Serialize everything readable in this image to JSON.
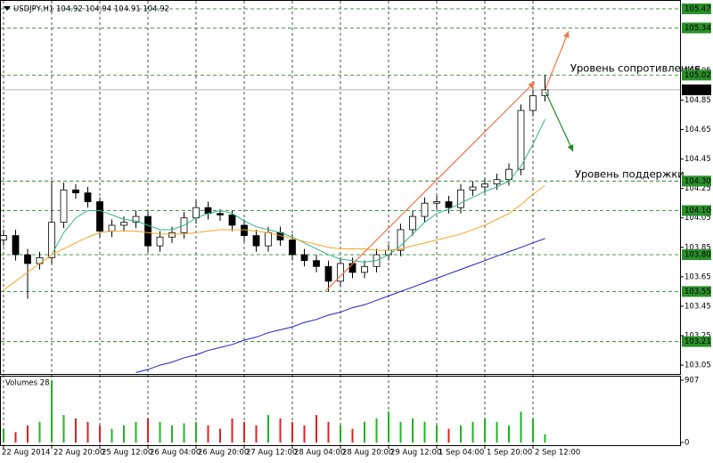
{
  "chart_data": {
    "type": "candlestick",
    "title": "USDJPY,H1  104.92 104.94 104.91 104.92",
    "categories": [
      "22 Aug 2014",
      null,
      null,
      null,
      "22 Aug 20:00",
      null,
      null,
      null,
      "25 Aug 12:00",
      null,
      null,
      null,
      "26 Aug 04:00",
      null,
      null,
      null,
      "26 Aug 20:00",
      null,
      null,
      null,
      "27 Aug 12:00",
      null,
      null,
      null,
      "28 Aug 04:00",
      null,
      null,
      null,
      "28 Aug 20:00",
      null,
      null,
      null,
      "29 Aug 12:00",
      null,
      null,
      null,
      "1 Sep 04:00",
      null,
      null,
      null,
      "1 Sep 20:00",
      null,
      null,
      null,
      "2 Sep 12:00",
      null
    ],
    "open": [
      103.9,
      103.93,
      103.8,
      103.74,
      103.78,
      104.02,
      104.24,
      104.22,
      104.16,
      103.96,
      104.0,
      104.02,
      104.06,
      103.86,
      103.92,
      103.95,
      104.05,
      104.12,
      104.08,
      104.07,
      104.0,
      103.93,
      103.86,
      103.95,
      103.9,
      103.8,
      103.76,
      103.72,
      103.62,
      103.74,
      103.68,
      103.72,
      103.8,
      103.83,
      103.97,
      104.06,
      104.15,
      104.16,
      104.12,
      104.24,
      104.26,
      104.28,
      104.31,
      104.38,
      104.78,
      104.88
    ],
    "high": [
      103.97,
      103.97,
      103.84,
      103.82,
      104.3,
      104.29,
      104.28,
      104.26,
      104.19,
      104.04,
      104.06,
      104.1,
      104.1,
      103.96,
      103.99,
      104.09,
      104.17,
      104.16,
      104.11,
      104.1,
      104.04,
      103.97,
      103.99,
      103.99,
      103.94,
      103.84,
      103.8,
      103.76,
      103.78,
      103.78,
      103.76,
      103.84,
      103.87,
      104.01,
      104.1,
      104.19,
      104.2,
      104.2,
      104.28,
      104.3,
      104.32,
      104.35,
      104.42,
      104.82,
      104.92,
      105.02
    ],
    "low": [
      103.86,
      103.76,
      103.5,
      103.7,
      103.74,
      103.98,
      104.18,
      104.12,
      103.92,
      103.92,
      103.96,
      103.98,
      103.82,
      103.82,
      103.88,
      103.91,
      104.01,
      104.04,
      104.03,
      103.96,
      103.89,
      103.82,
      103.82,
      103.86,
      103.76,
      103.72,
      103.68,
      103.55,
      103.58,
      103.64,
      103.64,
      103.68,
      103.76,
      103.79,
      103.93,
      104.02,
      104.11,
      104.08,
      104.08,
      104.2,
      104.22,
      104.24,
      104.27,
      104.34,
      104.74,
      104.84
    ],
    "close": [
      103.93,
      103.8,
      103.74,
      103.78,
      104.02,
      104.24,
      104.22,
      104.16,
      103.96,
      104.0,
      104.02,
      104.06,
      103.86,
      103.92,
      103.95,
      104.05,
      104.12,
      104.08,
      104.07,
      104.0,
      103.93,
      103.86,
      103.95,
      103.9,
      103.8,
      103.76,
      103.72,
      103.62,
      103.74,
      103.68,
      103.72,
      103.8,
      103.83,
      103.97,
      104.06,
      104.15,
      104.16,
      104.12,
      104.24,
      104.26,
      104.28,
      104.31,
      104.38,
      104.78,
      104.88,
      104.92
    ],
    "up_color": "#ffffff",
    "down_color": "#000000",
    "line_color": "#000000",
    "series": [
      {
        "color": "#2fb48a",
        "values": [
          null,
          null,
          null,
          null,
          103.8,
          103.95,
          104.05,
          104.1,
          104.1,
          104.07,
          104.04,
          104.03,
          104.0,
          103.97,
          103.97,
          104.0,
          104.05,
          104.08,
          104.1,
          104.08,
          104.03,
          103.99,
          103.97,
          103.95,
          103.92,
          103.88,
          103.84,
          103.8,
          103.77,
          103.76,
          103.75,
          103.76,
          103.8,
          103.86,
          103.94,
          104.02,
          104.08,
          104.11,
          104.15,
          104.19,
          104.23,
          104.26,
          104.3,
          104.4,
          104.55,
          104.72
        ]
      },
      {
        "color": "#f5a623",
        "values": [
          103.56,
          103.62,
          103.68,
          103.74,
          103.8,
          103.84,
          103.88,
          103.92,
          103.95,
          103.96,
          103.96,
          103.96,
          103.95,
          103.94,
          103.94,
          103.94,
          103.95,
          103.96,
          103.97,
          103.97,
          103.97,
          103.96,
          103.95,
          103.93,
          103.91,
          103.89,
          103.87,
          103.85,
          103.84,
          103.84,
          103.84,
          103.83,
          103.83,
          103.84,
          103.86,
          103.88,
          103.9,
          103.92,
          103.94,
          103.97,
          104.0,
          104.04,
          104.08,
          104.14,
          104.21,
          104.27
        ]
      },
      {
        "color": "#2020c0",
        "values": [
          null,
          null,
          null,
          null,
          null,
          null,
          null,
          null,
          null,
          null,
          null,
          103.0,
          103.02,
          103.05,
          103.07,
          103.1,
          103.12,
          103.15,
          103.17,
          103.19,
          103.22,
          103.24,
          103.27,
          103.29,
          103.31,
          103.34,
          103.36,
          103.39,
          103.41,
          103.44,
          103.46,
          103.49,
          103.52,
          103.55,
          103.58,
          103.61,
          103.64,
          103.67,
          103.7,
          103.73,
          103.76,
          103.79,
          103.82,
          103.85,
          103.88,
          103.91
        ]
      }
    ],
    "ylim": [
      102.99,
      105.53
    ],
    "yticks": [
      105.05,
      104.85,
      104.65,
      104.45,
      104.25,
      104.05,
      103.85,
      103.65,
      103.45,
      103.25,
      103.05
    ],
    "levels": [
      105.47,
      105.34,
      105.02,
      {
        "value": 104.3,
        "label": "104.30"
      },
      {
        "value": 104.1,
        "label": "104.10"
      },
      {
        "value": 103.8,
        "label": "103.80"
      },
      103.55,
      103.21
    ],
    "level_color": "#2a8f2a",
    "last_price": 104.92,
    "annotations": [
      "Уровень сопротивления",
      "Уровень поддержки"
    ],
    "volume": {
      "title": "Volumes 28",
      "values": [
        200,
        150,
        250,
        300,
        907,
        400,
        350,
        300,
        250,
        200,
        250,
        300,
        350,
        300,
        250,
        280,
        300,
        250,
        200,
        350,
        300,
        250,
        400,
        350,
        300,
        250,
        400,
        300,
        250,
        200,
        300,
        350,
        450,
        300,
        350,
        300,
        250,
        200,
        250,
        300,
        350,
        300,
        250,
        450,
        350,
        120
      ],
      "ylim": [
        0,
        907
      ],
      "yticks": [
        0,
        907
      ],
      "up_color": "#22b422",
      "down_color": "#e02020"
    }
  }
}
